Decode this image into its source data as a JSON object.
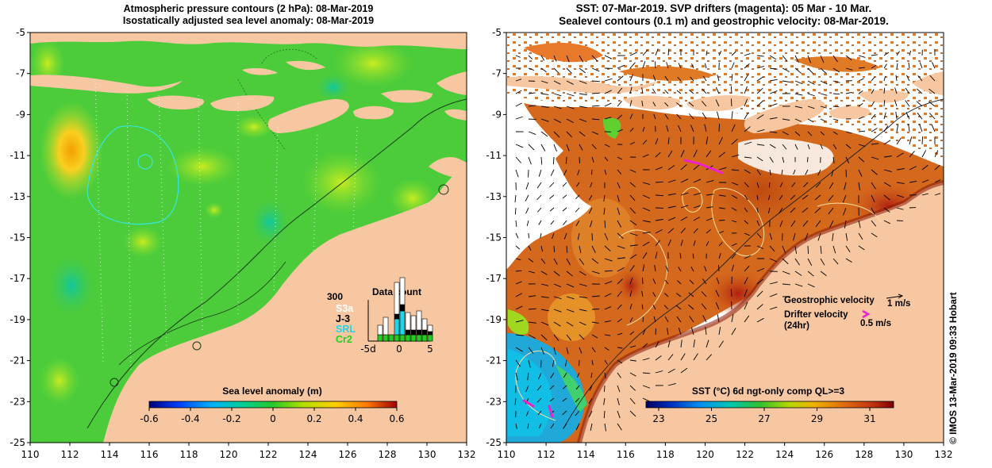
{
  "left_map": {
    "title_line1": "Atmospheric pressure contours (2 hPa): 08-Mar-2019",
    "title_line2": "Isostatically adjusted sea level anomaly: 08-Mar-2019",
    "x_ticks": [
      "110",
      "112",
      "114",
      "116",
      "118",
      "120",
      "122",
      "124",
      "126",
      "128",
      "130",
      "132"
    ],
    "y_ticks": [
      "-5",
      "-7",
      "-9",
      "-11",
      "-13",
      "-15",
      "-17",
      "-19",
      "-21",
      "-23",
      "-25"
    ],
    "colorbar_title": "Sea level anomaly (m)",
    "colorbar_ticks": [
      "-0.6",
      "-0.4",
      "-0.2",
      "0",
      "0.2",
      "0.4",
      "0.6"
    ],
    "data_count": {
      "title": "Data count",
      "ymax_label": "300",
      "legend": [
        {
          "label": "S3a",
          "color": "#ffffff"
        },
        {
          "label": "J-3",
          "color": "#000000"
        },
        {
          "label": "SRL",
          "color": "#22d4e8"
        },
        {
          "label": "Cr2",
          "color": "#22cc22"
        }
      ],
      "x_ticks": [
        "-5d",
        "0",
        "5"
      ]
    }
  },
  "right_map": {
    "title_line1": "SST: 07-Mar-2019. SVP drifters (magenta): 05 Mar - 10 Mar.",
    "title_line2": "Sealevel contours (0.1 m) and geostrophic velocity: 08-Mar-2019.",
    "x_ticks": [
      "110",
      "112",
      "114",
      "116",
      "118",
      "120",
      "122",
      "124",
      "126",
      "128",
      "130",
      "132"
    ],
    "y_ticks": [
      "-5",
      "-7",
      "-9",
      "-11",
      "-13",
      "-15",
      "-17",
      "-19",
      "-21",
      "-23",
      "-25"
    ],
    "colorbar_title": "SST (°C) 6d ngt-only comp QL>=3",
    "colorbar_ticks": [
      "23",
      "25",
      "27",
      "29",
      "31"
    ],
    "geostrophic_label": "Geostrophic velocity",
    "geostrophic_scale": "1 m/s",
    "drifter_label_line1": "Drifter velocity",
    "drifter_label_line2": "(24hr)",
    "drifter_scale": "0.5 m/s",
    "credit": "© IMOS 13-Mar-2019 09:33 Hobart"
  },
  "colors": {
    "land": "#f6c7a0",
    "ocean_green": "#4ccc3a",
    "sst_orange": "#d4681c",
    "drifter_magenta": "#ee22cc"
  }
}
